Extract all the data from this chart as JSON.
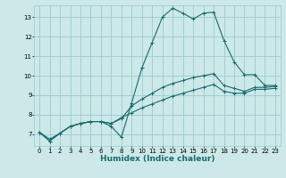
{
  "xlabel": "Humidex (Indice chaleur)",
  "bg_color": "#cce8e8",
  "grid_color": "#99cccc",
  "line_color": "#1a6b6b",
  "xlim": [
    -0.5,
    23.5
  ],
  "ylim": [
    6.4,
    13.6
  ],
  "xticks": [
    0,
    1,
    2,
    3,
    4,
    5,
    6,
    7,
    8,
    9,
    10,
    11,
    12,
    13,
    14,
    15,
    16,
    17,
    18,
    19,
    20,
    21,
    22,
    23
  ],
  "yticks": [
    7,
    8,
    9,
    10,
    11,
    12,
    13
  ],
  "line1_x": [
    0,
    1,
    2,
    3,
    4,
    5,
    6,
    7,
    8,
    9,
    10,
    11,
    12,
    13,
    14,
    15,
    16,
    17,
    18,
    19,
    20,
    21,
    22,
    23
  ],
  "line1_y": [
    7.1,
    6.65,
    7.05,
    7.4,
    7.55,
    7.65,
    7.65,
    7.4,
    6.85,
    8.6,
    10.4,
    11.7,
    13.0,
    13.45,
    13.2,
    12.9,
    13.2,
    13.25,
    11.8,
    10.7,
    10.05,
    10.05,
    9.5,
    9.5
  ],
  "line2_x": [
    0,
    1,
    2,
    3,
    4,
    5,
    6,
    7,
    8,
    9,
    10,
    11,
    12,
    13,
    14,
    15,
    16,
    17,
    18,
    19,
    20,
    21,
    22,
    23
  ],
  "line2_y": [
    7.1,
    6.65,
    7.05,
    7.4,
    7.55,
    7.65,
    7.65,
    7.55,
    7.8,
    8.45,
    8.8,
    9.1,
    9.4,
    9.6,
    9.75,
    9.9,
    10.0,
    10.1,
    9.5,
    9.35,
    9.2,
    9.4,
    9.4,
    9.45
  ],
  "line3_x": [
    0,
    1,
    2,
    3,
    4,
    5,
    6,
    7,
    8,
    9,
    10,
    11,
    12,
    13,
    14,
    15,
    16,
    17,
    18,
    19,
    20,
    21,
    22,
    23
  ],
  "line3_y": [
    7.1,
    6.75,
    7.05,
    7.4,
    7.55,
    7.65,
    7.65,
    7.55,
    7.85,
    8.1,
    8.35,
    8.55,
    8.75,
    8.95,
    9.1,
    9.25,
    9.4,
    9.55,
    9.2,
    9.1,
    9.1,
    9.3,
    9.3,
    9.35
  ]
}
